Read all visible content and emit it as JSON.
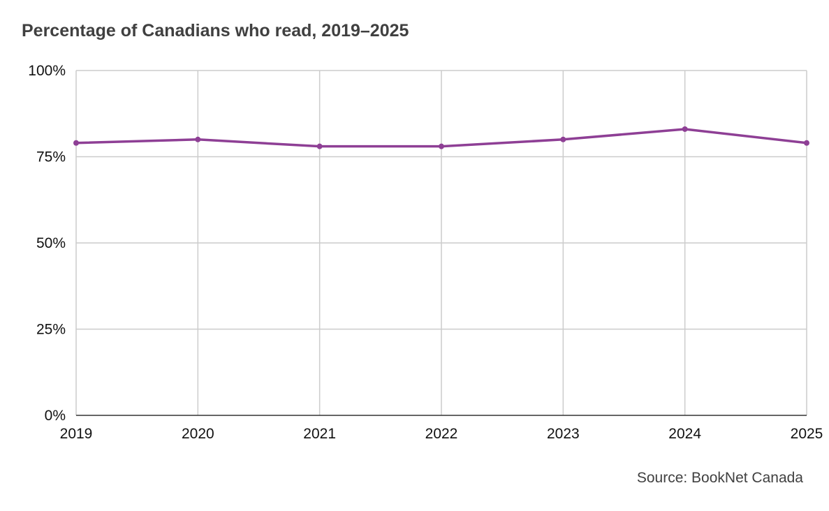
{
  "title": "Percentage of Canadians who read, 2019–2025",
  "source": "Source: BookNet Canada",
  "colors": {
    "line": "#8e3f95",
    "grid": "#cccccc",
    "axis": "#333333",
    "text": "#404040"
  },
  "chart_data": {
    "type": "line",
    "title": "Percentage of Canadians who read, 2019–2025",
    "x": [
      2019,
      2020,
      2021,
      2022,
      2023,
      2024,
      2025
    ],
    "x_tick_labels": [
      "2019",
      "2020",
      "2021",
      "2022",
      "2023",
      "2024",
      "2025"
    ],
    "series": [
      {
        "values": [
          79,
          80,
          78,
          78,
          80,
          83,
          79
        ]
      }
    ],
    "ylim": [
      0,
      100
    ],
    "y_ticks": [
      0,
      25,
      50,
      75,
      100
    ],
    "y_tick_labels": [
      "0%",
      "25%",
      "50%",
      "75%",
      "100%"
    ],
    "grid": true,
    "legend": "none"
  }
}
